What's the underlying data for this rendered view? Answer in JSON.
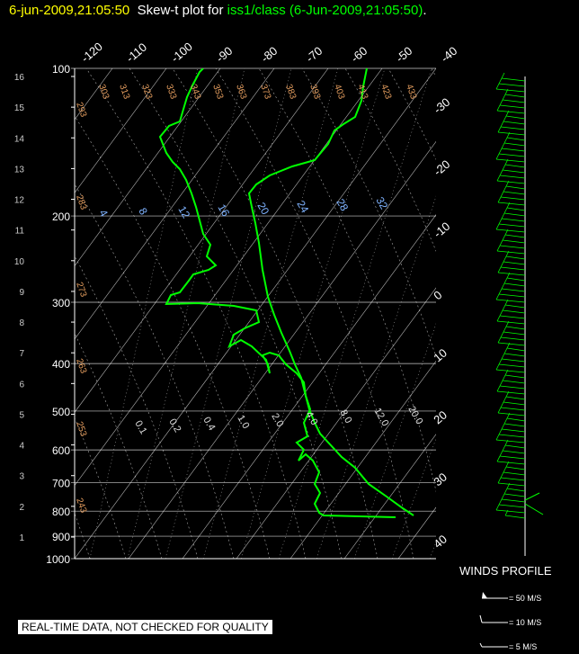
{
  "header": {
    "date_time": "6-jun-2009,21:05:50",
    "plot_prefix": "Skew-t plot for",
    "source": "iss1/class",
    "source_time": "(6-Jun-2009,21:05:50)",
    "trailing": "."
  },
  "quality_badge": "REAL-TIME DATA, NOT CHECKED FOR QUALITY",
  "winds": {
    "title": "WINDS PROFILE",
    "legend": [
      "= 50 M/S",
      "= 10 M/S",
      "= 5 M/S"
    ]
  },
  "colors": {
    "date": "#ffff00",
    "text": "#ffffff",
    "trace": "#00ff00",
    "grid": "#ffffff",
    "mixing_ratio": "#7fb3ff",
    "theta": "#e8a060"
  },
  "chart_data": {
    "type": "skew-t",
    "pressure_levels_mb": [
      100,
      200,
      300,
      400,
      500,
      600,
      700,
      800,
      900,
      1000
    ],
    "height_labels_km": [
      "16",
      "15",
      "14",
      "13",
      "12",
      "11",
      "10",
      "9",
      "8",
      "7",
      "6",
      "5",
      "4",
      "3",
      "2",
      "1"
    ],
    "top_temp_labels_C": [
      "-120",
      "-110",
      "-100",
      "-90",
      "-80",
      "-70",
      "-60",
      "-50",
      "-40"
    ],
    "right_temp_labels_C": [
      "-30",
      "-20",
      "-10",
      "0",
      "10",
      "20",
      "30",
      "40"
    ],
    "theta_labels_K": [
      "293",
      "303",
      "313",
      "323",
      "333",
      "343",
      "353",
      "363",
      "373",
      "383",
      "393",
      "403",
      "413",
      "423",
      "433",
      "283",
      "273",
      "263",
      "253",
      "243"
    ],
    "mixing_ratio_labels_upper": [
      "4",
      "8",
      "12",
      "16",
      "20",
      "24",
      "28",
      "32"
    ],
    "mixing_ratio_labels_lower": [
      "0.1",
      "0.2",
      "0.4",
      "1.0",
      "2.0",
      "4.0",
      "8.0",
      "12.0",
      "20.0"
    ]
  }
}
